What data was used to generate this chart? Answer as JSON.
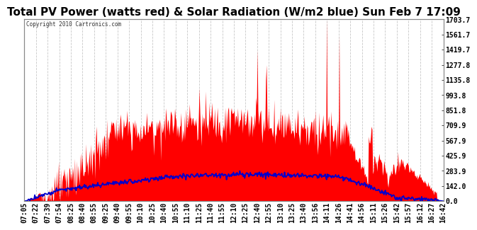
{
  "title": "Total PV Power (watts red) & Solar Radiation (W/m2 blue) Sun Feb 7 17:09",
  "copyright": "Copyright 2010 Cartronics.com",
  "ylabel_right_ticks": [
    0.0,
    142.0,
    283.9,
    425.9,
    567.9,
    709.9,
    851.8,
    993.8,
    1135.8,
    1277.8,
    1419.7,
    1561.7,
    1703.7
  ],
  "ymax": 1703.7,
  "ymin": 0.0,
  "x_labels": [
    "07:05",
    "07:22",
    "07:39",
    "07:54",
    "08:25",
    "08:40",
    "08:55",
    "09:25",
    "09:40",
    "09:55",
    "10:10",
    "10:25",
    "10:40",
    "10:55",
    "11:10",
    "11:25",
    "11:40",
    "11:55",
    "12:10",
    "12:25",
    "12:40",
    "12:55",
    "13:10",
    "13:25",
    "13:40",
    "13:56",
    "14:11",
    "14:26",
    "14:41",
    "14:56",
    "15:11",
    "15:26",
    "15:42",
    "15:57",
    "16:12",
    "16:27",
    "16:42"
  ],
  "background_color": "#ffffff",
  "plot_bg_color": "#ffffff",
  "grid_color": "#c8c8c8",
  "fill_color": "#ff0000",
  "line_color": "#0000cc",
  "title_fontsize": 11,
  "tick_fontsize": 7
}
